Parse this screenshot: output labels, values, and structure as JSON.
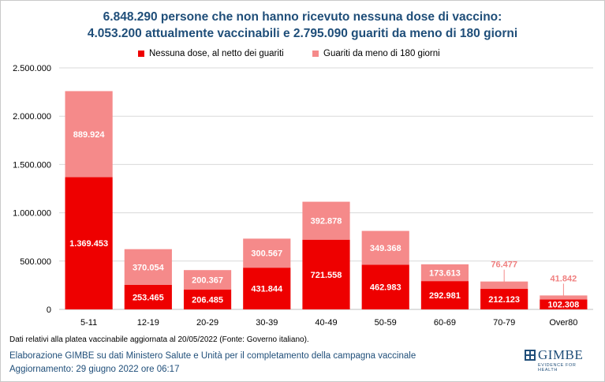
{
  "title_line1": "6.848.290 persone che non hanno ricevuto nessuna dose di vaccino:",
  "title_line2": "4.053.200 attualmente vaccinabili e 2.795.090 guariti da meno di 180 giorni",
  "colors": {
    "series1": "#ee0000",
    "series2": "#f58a8a",
    "title": "#1f4e79",
    "grid": "#d9d9d9"
  },
  "chart_data": {
    "type": "bar",
    "stacked": true,
    "categories": [
      "5-11",
      "12-19",
      "20-29",
      "30-39",
      "40-49",
      "50-59",
      "60-69",
      "70-79",
      "Over80"
    ],
    "series": [
      {
        "name": "Nessuna dose, al netto dei guariti",
        "values": [
          1369453,
          253465,
          206485,
          431844,
          721558,
          462983,
          292981,
          212123,
          102308
        ],
        "labels": [
          "1.369.453",
          "253.465",
          "206.485",
          "431.844",
          "721.558",
          "462.983",
          "292.981",
          "212.123",
          "102.308"
        ]
      },
      {
        "name": "Guariti da meno di 180 giorni",
        "values": [
          889924,
          370054,
          200367,
          300567,
          392878,
          349368,
          173613,
          76477,
          41842
        ],
        "labels": [
          "889.924",
          "370.054",
          "200.367",
          "300.567",
          "392.878",
          "349.368",
          "173.613",
          "76.477",
          "41.842"
        ]
      }
    ],
    "ylim": [
      0,
      2500000
    ],
    "yticks": [
      0,
      500000,
      1000000,
      1500000,
      2000000,
      2500000
    ],
    "ytick_labels": [
      "0",
      "500.000",
      "1.000.000",
      "1.500.000",
      "2.000.000",
      "2.500.000"
    ],
    "grid": true,
    "legend": "top-center"
  },
  "note": "Dati relativi alla platea vaccinabile aggiornata al 20/05/2022 (Fonte: Governo italiano).",
  "source_line1": "Elaborazione GIMBE su dati Ministero Salute e Unità per il completamento della campagna vaccinale",
  "source_line2": "Aggiornamento: 29 giugno 2022 ore 06:17",
  "logo": {
    "name": "GIMBE",
    "tagline": "EVIDENCE FOR HEALTH"
  }
}
